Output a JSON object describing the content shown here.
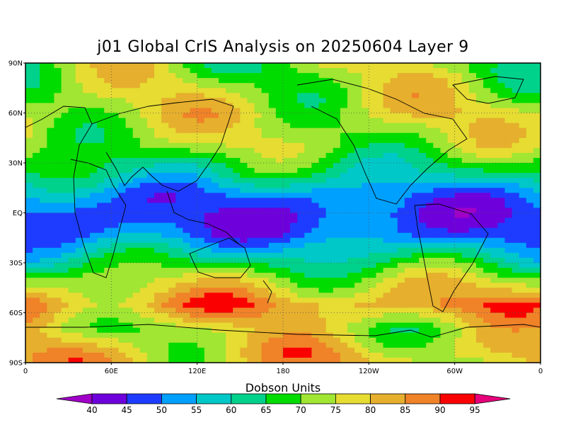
{
  "chart_data": {
    "type": "heatmap",
    "title": "j01 Global CrIS Analysis on 20250604 Layer 9",
    "lat_ticks": [
      "90N",
      "60N",
      "30N",
      "EQ",
      "30S",
      "60S",
      "90S"
    ],
    "lon_ticks": [
      "0",
      "60E",
      "120E",
      "180",
      "120W",
      "60W",
      "0"
    ],
    "colorbar": {
      "unit": "Dobson Units",
      "levels": [
        40,
        45,
        50,
        55,
        60,
        65,
        70,
        75,
        80,
        85,
        90,
        95
      ],
      "colors": [
        "#a000c8",
        "#6e00dc",
        "#1e3cff",
        "#00a0ff",
        "#00c8c8",
        "#00d28c",
        "#00dc00",
        "#a0e632",
        "#e6dc32",
        "#e6af2d",
        "#f08228",
        "#fa0000",
        "#e6007a"
      ]
    },
    "value_by_latitude": [
      {
        "lat": 85,
        "du": 72
      },
      {
        "lat": 60,
        "du": 76
      },
      {
        "lat": 40,
        "du": 72
      },
      {
        "lat": 25,
        "du": 63
      },
      {
        "lat": 10,
        "du": 50
      },
      {
        "lat": 0,
        "du": 46
      },
      {
        "lat": -12,
        "du": 48
      },
      {
        "lat": -25,
        "du": 60
      },
      {
        "lat": -40,
        "du": 74
      },
      {
        "lat": -55,
        "du": 85
      },
      {
        "lat": -70,
        "du": 75
      },
      {
        "lat": -85,
        "du": 80
      }
    ]
  }
}
